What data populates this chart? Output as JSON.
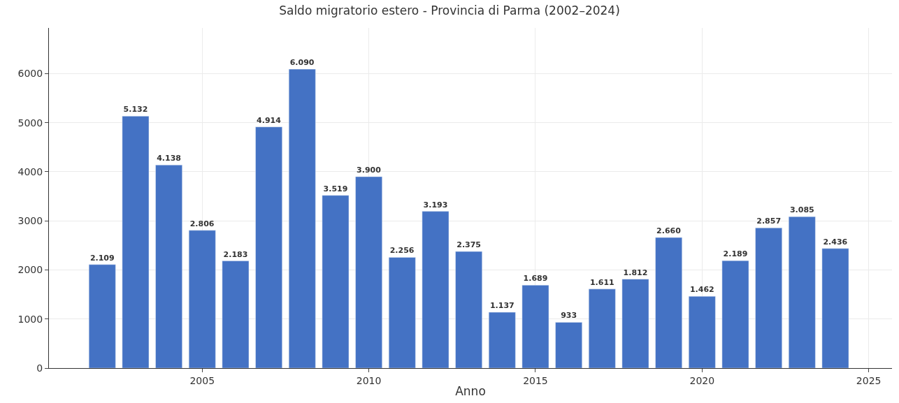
{
  "chart_data": {
    "type": "bar",
    "title": "Saldo migratorio estero - Provincia di Parma (2002–2024)",
    "xlabel": "Anno",
    "x": [
      2002,
      2003,
      2004,
      2005,
      2006,
      2007,
      2008,
      2009,
      2010,
      2011,
      2012,
      2013,
      2014,
      2015,
      2016,
      2017,
      2018,
      2019,
      2020,
      2021,
      2022,
      2023,
      2024
    ],
    "values": [
      2109,
      5132,
      4138,
      2806,
      2183,
      4914,
      6090,
      3519,
      3900,
      2256,
      3193,
      2375,
      1137,
      1689,
      933,
      1611,
      1812,
      2660,
      1462,
      2189,
      2857,
      3085,
      2436
    ],
    "value_labels": [
      "2.109",
      "5.132",
      "4.138",
      "2.806",
      "2.183",
      "4.914",
      "6.090",
      "3.519",
      "3.900",
      "2.256",
      "3.193",
      "2.375",
      "1.137",
      "1.689",
      "933",
      "1.611",
      "1.812",
      "2.660",
      "1.462",
      "2.189",
      "2.857",
      "3.085",
      "2.436"
    ],
    "color": "#4472c4",
    "xlim": [
      2000.4,
      2025.7
    ],
    "xticks": [
      2005,
      2010,
      2015,
      2020,
      2025
    ],
    "ylim": [
      0,
      6930
    ],
    "yticks": [
      0,
      1000,
      2000,
      3000,
      4000,
      5000,
      6000
    ],
    "grid": true
  }
}
